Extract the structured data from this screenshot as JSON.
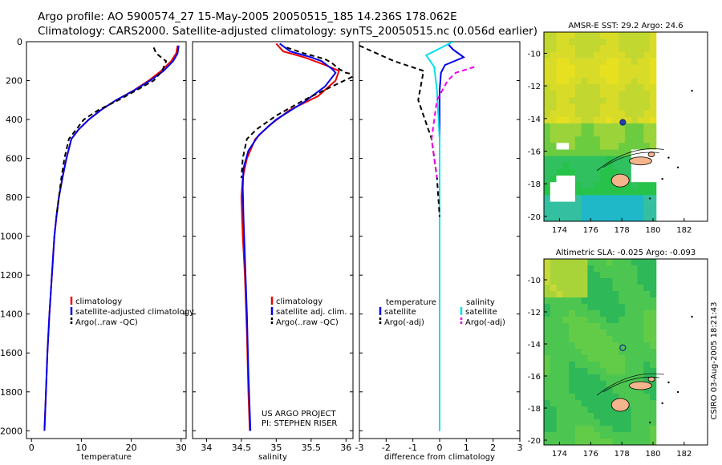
{
  "header": {
    "line1": "Argo profile: AO 5900574_27 15-May-2005 20050515_185 14.236S 178.062E",
    "line2": "Climatology: CARS2000. Satellite-adjusted climatology: synTS_20050515.nc (0.056d earlier)"
  },
  "side_label": "CSIRO 03-Aug-2005 18:21:43",
  "chart_data": [
    {
      "type": "line",
      "id": "temperature",
      "xlabel": "temperature",
      "ylabel": "",
      "xlim": [
        -1,
        31
      ],
      "ylim": [
        2040,
        0
      ],
      "x_ticks": [
        0,
        10,
        20,
        30
      ],
      "x_tick_labels": [
        "0",
        "10",
        "20",
        "30"
      ],
      "y_ticks": [
        0,
        200,
        400,
        600,
        800,
        1000,
        1200,
        1400,
        1600,
        1800,
        2000
      ],
      "y_tick_labels": [
        "0",
        "200",
        "400",
        "600",
        "800",
        "1000",
        "1200",
        "1400",
        "1600",
        "1800",
        "2000"
      ],
      "legend_position": "center-right",
      "legend": [
        {
          "label": "climatology",
          "color": "#ee0000",
          "style": "solid"
        },
        {
          "label": "satellite-adjusted climatology",
          "color": "#0000ee",
          "style": "solid"
        },
        {
          "label": "Argo(..raw -QC)",
          "color": "#000000",
          "style": "dashed"
        }
      ],
      "series": [
        {
          "color": "#ee0000",
          "style": "solid",
          "points": [
            [
              29.3,
              20
            ],
            [
              29.0,
              60
            ],
            [
              28.0,
              100
            ],
            [
              26.0,
              150
            ],
            [
              23.5,
              200
            ],
            [
              20.5,
              250
            ],
            [
              17.0,
              300
            ],
            [
              14.0,
              350
            ],
            [
              11.5,
              400
            ],
            [
              9.5,
              450
            ],
            [
              8.0,
              500
            ],
            [
              7.0,
              600
            ],
            [
              6.2,
              700
            ],
            [
              5.5,
              800
            ],
            [
              5.0,
              900
            ],
            [
              4.6,
              1000
            ],
            [
              4.1,
              1200
            ],
            [
              3.6,
              1400
            ],
            [
              3.2,
              1600
            ],
            [
              2.9,
              1800
            ],
            [
              2.6,
              2000
            ]
          ]
        },
        {
          "color": "#0000ee",
          "style": "solid",
          "points": [
            [
              29.5,
              20
            ],
            [
              29.3,
              60
            ],
            [
              28.4,
              100
            ],
            [
              26.5,
              150
            ],
            [
              23.8,
              200
            ],
            [
              20.6,
              250
            ],
            [
              17.0,
              300
            ],
            [
              14.0,
              350
            ],
            [
              11.5,
              400
            ],
            [
              9.5,
              450
            ],
            [
              8.0,
              500
            ],
            [
              7.0,
              600
            ],
            [
              6.2,
              700
            ],
            [
              5.5,
              800
            ],
            [
              5.0,
              900
            ],
            [
              4.6,
              1000
            ],
            [
              4.1,
              1200
            ],
            [
              3.6,
              1400
            ],
            [
              3.2,
              1600
            ],
            [
              2.9,
              1800
            ],
            [
              2.6,
              2000
            ]
          ]
        },
        {
          "color": "#000000",
          "style": "dashed",
          "points": [
            [
              24.5,
              30
            ],
            [
              25.0,
              60
            ],
            [
              27.0,
              100
            ],
            [
              26.2,
              150
            ],
            [
              24.5,
              200
            ],
            [
              21.0,
              250
            ],
            [
              17.5,
              300
            ],
            [
              13.5,
              350
            ],
            [
              10.5,
              400
            ],
            [
              9.0,
              450
            ],
            [
              7.5,
              500
            ],
            [
              6.6,
              600
            ],
            [
              6.0,
              700
            ],
            [
              5.5,
              800
            ],
            [
              5.0,
              900
            ]
          ]
        }
      ]
    },
    {
      "type": "line",
      "id": "salinity",
      "xlabel": "salinity",
      "xlim": [
        33.8,
        36.1
      ],
      "ylim": [
        2040,
        0
      ],
      "x_ticks": [
        34,
        34.5,
        35,
        35.5,
        36
      ],
      "x_tick_labels": [
        "34",
        "34.5",
        "35",
        "35.5",
        "36"
      ],
      "legend_position": "center-right",
      "legend": [
        {
          "label": "climatology",
          "color": "#ee0000",
          "style": "solid"
        },
        {
          "label": "satellite adj. clim.",
          "color": "#0000ee",
          "style": "solid"
        },
        {
          "label": "Argo(..raw -QC)",
          "color": "#000000",
          "style": "dashed"
        }
      ],
      "annotation": [
        "US ARGO PROJECT",
        "PI: STEPHEN RISER"
      ],
      "series": [
        {
          "color": "#ee0000",
          "style": "solid",
          "points": [
            [
              35.0,
              10
            ],
            [
              35.1,
              50
            ],
            [
              35.4,
              80
            ],
            [
              35.7,
              120
            ],
            [
              35.9,
              150
            ],
            [
              35.85,
              200
            ],
            [
              35.6,
              280
            ],
            [
              35.2,
              350
            ],
            [
              34.9,
              430
            ],
            [
              34.7,
              500
            ],
            [
              34.58,
              600
            ],
            [
              34.52,
              700
            ],
            [
              34.5,
              800
            ],
            [
              34.52,
              1000
            ],
            [
              34.55,
              1200
            ],
            [
              34.58,
              1500
            ],
            [
              34.6,
              1800
            ],
            [
              34.62,
              2000
            ]
          ]
        },
        {
          "color": "#0000ee",
          "style": "solid",
          "points": [
            [
              35.05,
              10
            ],
            [
              35.2,
              50
            ],
            [
              35.5,
              80
            ],
            [
              35.65,
              100
            ],
            [
              35.8,
              140
            ],
            [
              35.85,
              160
            ],
            [
              35.7,
              230
            ],
            [
              35.4,
              310
            ],
            [
              35.0,
              400
            ],
            [
              34.75,
              480
            ],
            [
              34.6,
              560
            ],
            [
              34.53,
              650
            ],
            [
              34.52,
              750
            ],
            [
              34.53,
              900
            ],
            [
              34.55,
              1100
            ],
            [
              34.58,
              1400
            ],
            [
              34.6,
              1700
            ],
            [
              34.63,
              2000
            ]
          ]
        },
        {
          "color": "#000000",
          "style": "dashed",
          "points": [
            [
              35.15,
              30
            ],
            [
              35.4,
              60
            ],
            [
              35.7,
              90
            ],
            [
              35.8,
              110
            ],
            [
              35.9,
              140
            ],
            [
              36.0,
              160
            ],
            [
              36.15,
              170
            ],
            [
              35.8,
              230
            ],
            [
              35.4,
              300
            ],
            [
              35.0,
              380
            ],
            [
              34.72,
              450
            ],
            [
              34.58,
              500
            ],
            [
              34.52,
              600
            ],
            [
              34.5,
              700
            ]
          ]
        }
      ]
    },
    {
      "type": "line",
      "id": "difference",
      "xlabel": "difference from climatology",
      "xlim": [
        -3,
        3
      ],
      "ylim": [
        2040,
        0
      ],
      "x_ticks": [
        -3,
        -2,
        -1,
        0,
        1,
        2,
        3
      ],
      "x_tick_labels": [
        "-3",
        "-2",
        "-1",
        "0",
        "1",
        "2",
        "3"
      ],
      "legend_position": "center",
      "legend_temperature_header": "temperature",
      "legend_salinity_header": "salinity",
      "legend": [
        {
          "label": "satellite",
          "color": "#0000ee",
          "style": "solid",
          "column": "temperature"
        },
        {
          "label": "Argo(-adj)",
          "color": "#000000",
          "style": "dashed",
          "column": "temperature"
        },
        {
          "label": "satellite",
          "color": "#00e0ee",
          "style": "solid",
          "column": "salinity"
        },
        {
          "label": "Argo(-adj)",
          "color": "#ee00ee",
          "style": "dashed",
          "column": "salinity"
        }
      ],
      "series": [
        {
          "name": "temperature satellite",
          "color": "#0000ee",
          "style": "solid",
          "points": [
            [
              0.3,
              10
            ],
            [
              0.5,
              40
            ],
            [
              0.9,
              80
            ],
            [
              0.2,
              120
            ],
            [
              0.05,
              160
            ],
            [
              0.0,
              250
            ],
            [
              0.0,
              400
            ],
            [
              0.0,
              500
            ],
            [
              0.0,
              600
            ],
            [
              0.0,
              800
            ],
            [
              0.0,
              1000
            ],
            [
              0.0,
              1500
            ],
            [
              0.0,
              2000
            ]
          ]
        },
        {
          "name": "salinity satellite",
          "color": "#00e0ee",
          "style": "solid",
          "points": [
            [
              0.5,
              0
            ],
            [
              -0.5,
              70
            ],
            [
              -0.2,
              130
            ],
            [
              -0.1,
              250
            ],
            [
              0.0,
              500
            ],
            [
              0.0,
              1000
            ],
            [
              0.0,
              2000
            ]
          ]
        },
        {
          "name": "temperature Argo(-adj)",
          "color": "#000000",
          "style": "dashed",
          "points": [
            [
              -3.0,
              20
            ],
            [
              -1.7,
              100
            ],
            [
              -0.6,
              150
            ],
            [
              -0.8,
              300
            ],
            [
              -0.3,
              500
            ],
            [
              -0.1,
              700
            ],
            [
              0.0,
              900
            ]
          ]
        },
        {
          "name": "salinity Argo(-adj)",
          "color": "#ee00ee",
          "style": "dashed",
          "points": [
            [
              1.3,
              130
            ],
            [
              0.6,
              160
            ],
            [
              0.3,
              200
            ],
            [
              -0.1,
              300
            ],
            [
              -0.2,
              400
            ],
            [
              -0.3,
              500
            ],
            [
              -0.2,
              600
            ],
            [
              -0.1,
              700
            ]
          ]
        }
      ]
    },
    {
      "type": "heatmap",
      "id": "sst-map",
      "title": "AMSR-E SST: 29.2 Argo: 24.6",
      "xlim": [
        173,
        183.5
      ],
      "ylim": [
        -20.3,
        -8.7
      ],
      "x_ticks": [
        174,
        176,
        178,
        180,
        182
      ],
      "y_ticks": [
        -10,
        -12,
        -14,
        -16,
        -18,
        -20
      ],
      "x_tick_labels": [
        "174",
        "176",
        "178",
        "180",
        "182"
      ],
      "y_tick_labels": [
        "-10",
        "-12",
        "-14",
        "-16",
        "-18",
        "-20"
      ],
      "argo_position": {
        "lon": 178.062,
        "lat": -14.236
      },
      "colors": {
        "warm": "#e6e020",
        "mid": "#9ad43a",
        "cool": "#27c24a",
        "cold": "#1fb8c8",
        "land": "#f4b48c"
      }
    },
    {
      "type": "heatmap",
      "id": "sla-map",
      "title": "Altimetric SLA: -0.025 Argo: -0.093",
      "xlim": [
        173,
        183.5
      ],
      "ylim": [
        -20.3,
        -8.7
      ],
      "x_ticks": [
        174,
        176,
        178,
        180,
        182
      ],
      "y_ticks": [
        -10,
        -12,
        -14,
        -16,
        -18,
        -20
      ],
      "x_tick_labels": [
        "174",
        "176",
        "178",
        "180",
        "182"
      ],
      "y_tick_labels": [
        "-10",
        "-12",
        "-14",
        "-16",
        "-18",
        "-20"
      ],
      "argo_position": {
        "lon": 178.062,
        "lat": -14.236
      },
      "colors": {
        "high": "#c8d838",
        "mid": "#62cc48",
        "low": "#2fb858",
        "land": "#f4b48c"
      }
    }
  ]
}
